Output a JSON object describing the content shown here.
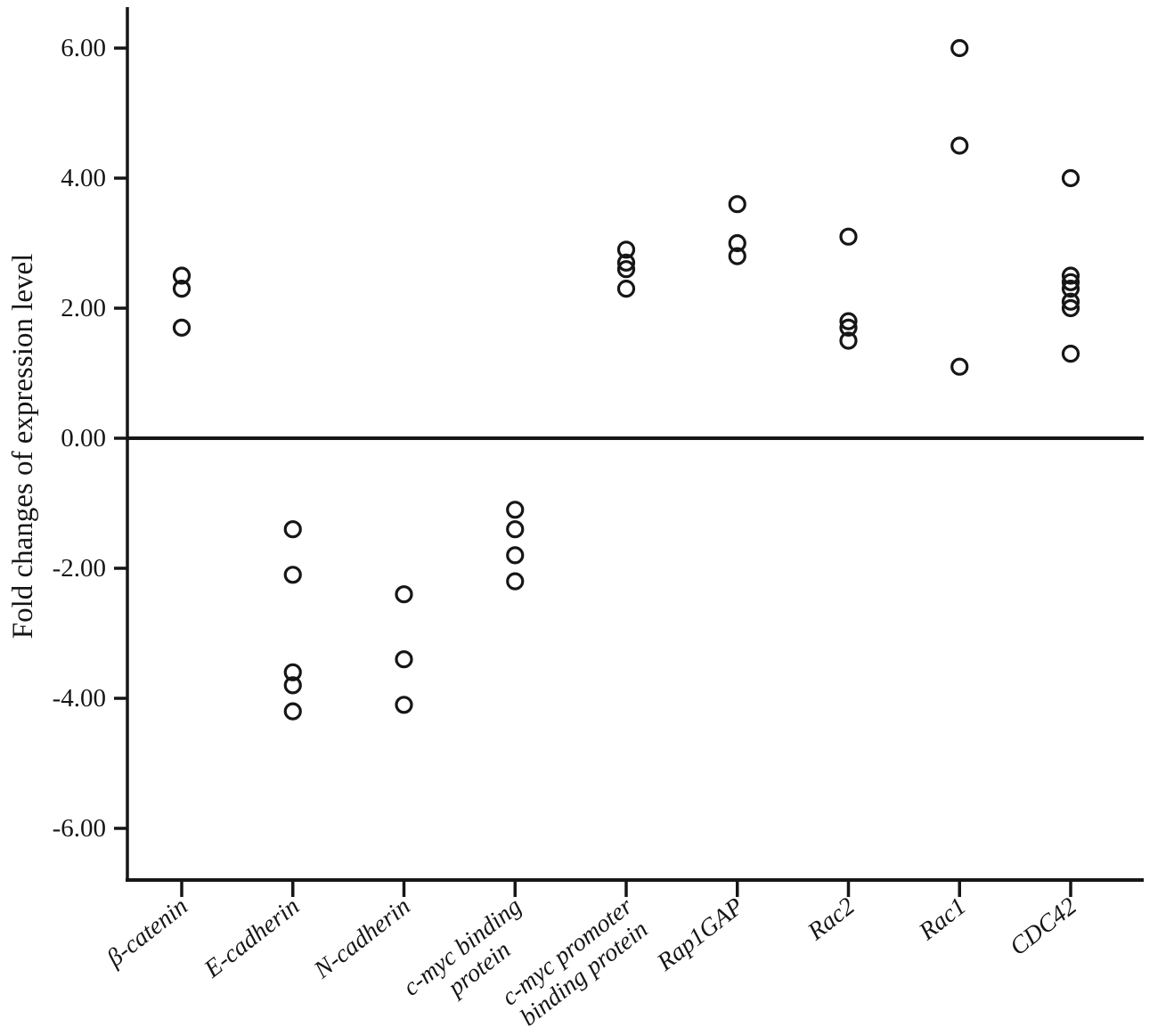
{
  "chart_data": {
    "type": "scatter",
    "title": "",
    "xlabel": "",
    "ylabel": "Fold changes of expression level",
    "ylim": [
      -6.8,
      6.6
    ],
    "grid": false,
    "legend": "none",
    "marker_style": "open-circle",
    "marker_color": "#161616",
    "axis_color": "#161616",
    "background_color": "#ffffff",
    "zero_reference_line": 0,
    "yticks": [
      {
        "value": 6,
        "label": "6.00"
      },
      {
        "value": 4,
        "label": "4.00"
      },
      {
        "value": 2,
        "label": "2.00"
      },
      {
        "value": 0,
        "label": "0.00"
      },
      {
        "value": -2,
        "label": "-2.00"
      },
      {
        "value": -4,
        "label": "-4.00"
      },
      {
        "value": -6,
        "label": "-6.00"
      }
    ],
    "categories": [
      {
        "lines": [
          "β-catenin"
        ]
      },
      {
        "lines": [
          "E-cadherin"
        ]
      },
      {
        "lines": [
          "N-cadherin"
        ]
      },
      {
        "lines": [
          "c-myc binding",
          "protein"
        ]
      },
      {
        "lines": [
          "c-myc promoter",
          "binding protein"
        ]
      },
      {
        "lines": [
          "Rap1GAP"
        ]
      },
      {
        "lines": [
          "Rac2"
        ]
      },
      {
        "lines": [
          "Rac1"
        ]
      },
      {
        "lines": [
          "CDC42"
        ]
      }
    ],
    "series": [
      {
        "name": "β-catenin",
        "values": [
          2.5,
          2.3,
          1.7
        ]
      },
      {
        "name": "E-cadherin",
        "values": [
          -1.4,
          -2.1,
          -3.6,
          -3.8,
          -4.2
        ]
      },
      {
        "name": "N-cadherin",
        "values": [
          -2.4,
          -3.4,
          -4.1
        ]
      },
      {
        "name": "c-myc binding protein",
        "values": [
          -1.1,
          -1.4,
          -1.8,
          -2.2
        ]
      },
      {
        "name": "c-myc promoter binding protein",
        "values": [
          2.9,
          2.7,
          2.6,
          2.3
        ]
      },
      {
        "name": "Rap1GAP",
        "values": [
          3.6,
          3.0,
          2.8
        ]
      },
      {
        "name": "Rac2",
        "values": [
          3.1,
          1.8,
          1.7,
          1.5
        ]
      },
      {
        "name": "Rac1",
        "values": [
          6.0,
          4.5,
          1.1
        ]
      },
      {
        "name": "CDC42",
        "values": [
          4.0,
          2.5,
          2.4,
          2.3,
          2.1,
          2.0,
          1.3
        ]
      }
    ]
  }
}
